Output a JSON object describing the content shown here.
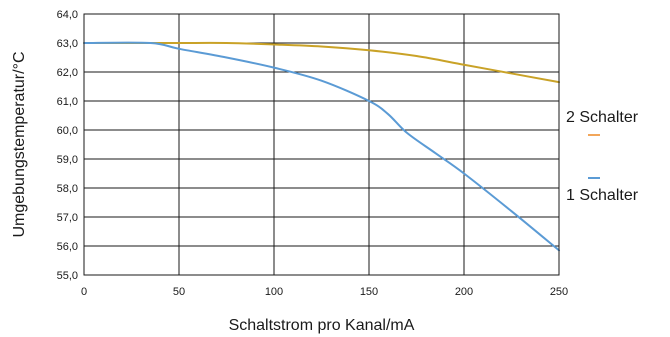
{
  "chart_data": {
    "type": "line",
    "xlabel": "Schaltstrom pro Kanal/mA",
    "ylabel": "Umgebungstemperatur/°C",
    "xlim": [
      0,
      250
    ],
    "ylim": [
      55.0,
      64.0
    ],
    "xticks": [
      "0",
      "50",
      "100",
      "150",
      "200",
      "250"
    ],
    "xtick_values": [
      0,
      50,
      100,
      150,
      200,
      250
    ],
    "yticks": [
      "55,0",
      "56,0",
      "57,0",
      "58,0",
      "59,0",
      "60,0",
      "61,0",
      "62,0",
      "63,0",
      "64,0"
    ],
    "ytick_values": [
      55,
      56,
      57,
      58,
      59,
      60,
      61,
      62,
      63,
      64
    ],
    "grid": true,
    "legend_position": "right",
    "series": [
      {
        "name": "2 Schalter",
        "color": "#c9a227",
        "legend_color": "#f2a65a",
        "x": [
          0,
          25,
          50,
          75,
          100,
          125,
          150,
          175,
          200,
          225,
          250
        ],
        "y": [
          63.0,
          63.0,
          63.0,
          63.0,
          62.95,
          62.88,
          62.75,
          62.55,
          62.25,
          61.95,
          61.65
        ]
      },
      {
        "name": "1 Schalter",
        "color": "#5b9bd5",
        "legend_color": "#5b9bd5",
        "x": [
          0,
          35,
          50,
          75,
          100,
          125,
          150,
          160,
          170,
          185,
          200,
          225,
          250
        ],
        "y": [
          63.0,
          63.0,
          62.8,
          62.5,
          62.15,
          61.7,
          61.0,
          60.55,
          59.9,
          59.2,
          58.5,
          57.2,
          55.85
        ]
      }
    ]
  }
}
